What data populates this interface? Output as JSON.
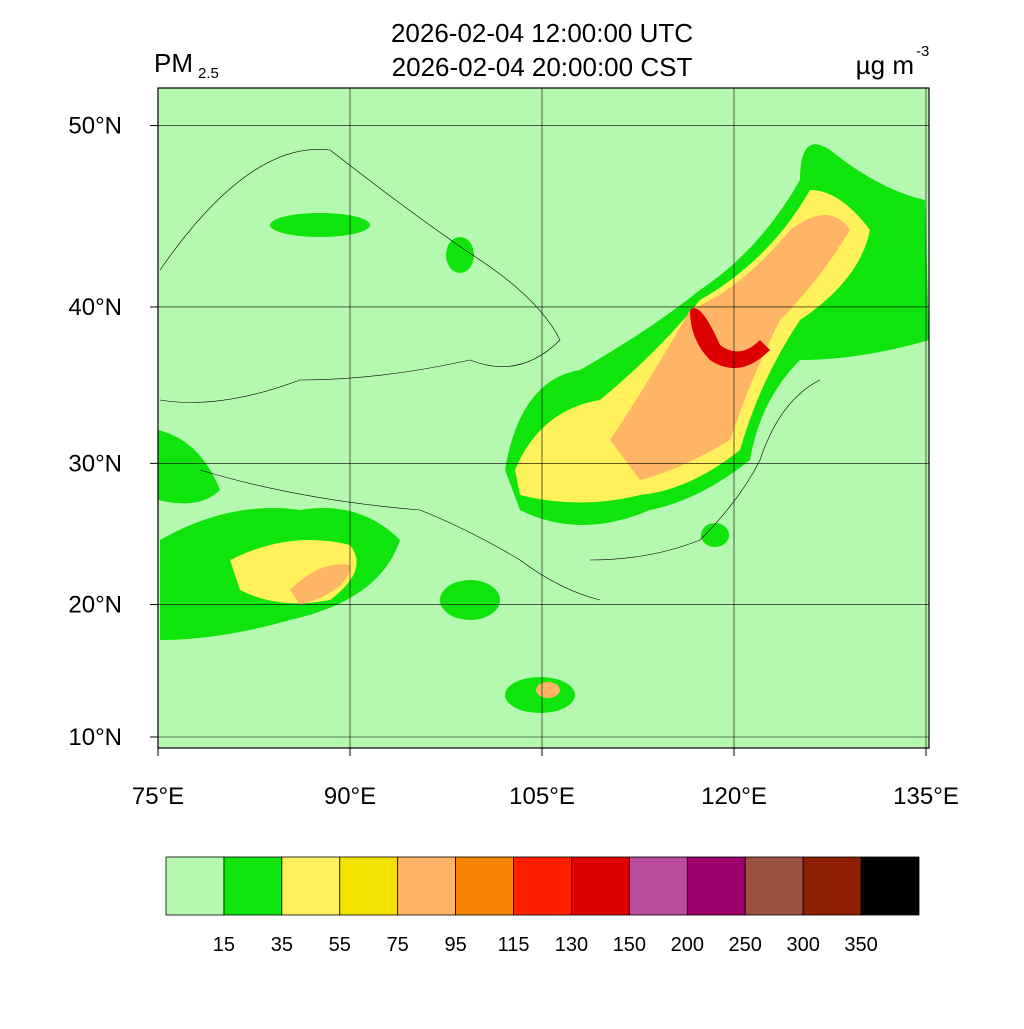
{
  "header": {
    "title_lines": [
      "2026-02-04 12:00:00 UTC",
      "2026-02-04 20:00:00 CST"
    ],
    "variable": "PM",
    "variable_sub": "2.5",
    "units": "µg m",
    "units_sup": "-3"
  },
  "map": {
    "background": "#b5f8b0",
    "lon_ticks": [
      {
        "value": 75,
        "label": "75°E"
      },
      {
        "value": 90,
        "label": "90°E"
      },
      {
        "value": 105,
        "label": "105°E"
      },
      {
        "value": 120,
        "label": "120°E"
      },
      {
        "value": 135,
        "label": "135°E"
      }
    ],
    "lat_ticks": [
      {
        "value": 50,
        "label": "50°N"
      },
      {
        "value": 40,
        "label": "40°N"
      },
      {
        "value": 30,
        "label": "30°N"
      },
      {
        "value": 20,
        "label": "20°N"
      },
      {
        "value": 10,
        "label": "10°N"
      }
    ]
  },
  "colorbar": {
    "colors": [
      "#b5f8b0",
      "#0fe40c",
      "#fff15c",
      "#f4e200",
      "#ffb565",
      "#f78400",
      "#fd2000",
      "#de0000",
      "#ba4c9e",
      "#9b006d",
      "#9a5141",
      "#8c2000",
      "#000000"
    ],
    "levels": [
      15,
      35,
      55,
      75,
      95,
      115,
      130,
      150,
      200,
      250,
      300,
      350
    ]
  }
}
